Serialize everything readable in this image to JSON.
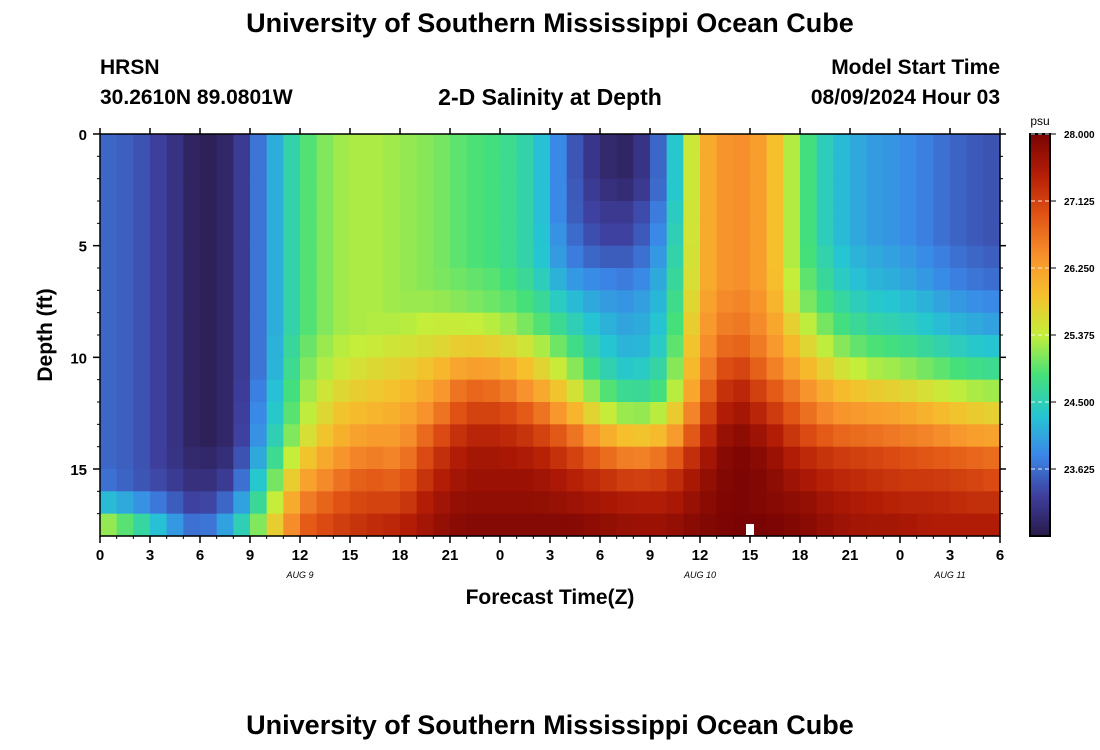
{
  "header": {
    "title": "University of Southern Mississippi Ocean Cube",
    "station": "HRSN",
    "coords": "30.2610N  89.0801W",
    "plot_title": "2-D Salinity at Depth",
    "model_label": "Model Start Time",
    "model_time": "08/09/2024 Hour 03",
    "footer_title": "University of Southern Mississippi Ocean Cube"
  },
  "colors": {
    "palette": [
      "#2a1a4a",
      "#3e3e9c",
      "#3b86e8",
      "#25c6d2",
      "#45e07a",
      "#c4ee3a",
      "#f6c02c",
      "#f7902c",
      "#e05214",
      "#b31d06",
      "#7a0403"
    ]
  },
  "chart_data": {
    "type": "heatmap",
    "title": "2-D Salinity at Depth",
    "xlabel": "Forecast Time(Z)",
    "ylabel": "Depth (ft)",
    "x_tick_labels": [
      "0",
      "3",
      "6",
      "9",
      "12",
      "15",
      "18",
      "21",
      "0",
      "3",
      "6",
      "9",
      "12",
      "15",
      "18",
      "21",
      "0",
      "3",
      "6"
    ],
    "y_ticks": [
      0,
      5,
      10,
      15
    ],
    "y_tick_labels": [
      "0",
      "5",
      "10",
      "15"
    ],
    "ylim": [
      0,
      18
    ],
    "x_hours_range": [
      0,
      54
    ],
    "date_labels": [
      {
        "label": "AUG 9",
        "hour": 12
      },
      {
        "label": "AUG 10",
        "hour": 36
      },
      {
        "label": "AUG 11",
        "hour": 51
      }
    ],
    "colorbar": {
      "unit": "psu",
      "min": 22.75,
      "max": 28.0,
      "tick_values": [
        28.0,
        27.125,
        26.25,
        25.375,
        24.5,
        23.625
      ],
      "tick_labels": [
        "28.000",
        "27.125",
        "26.250",
        "25.375",
        "24.500",
        "23.625"
      ]
    },
    "grid": false,
    "time_step_hours": 1,
    "depth_step_ft": 1,
    "columns": [
      {
        "h": 0,
        "s": [
          23.6,
          23.6,
          23.6,
          23.6,
          23.6,
          23.6,
          23.6,
          23.6,
          23.6,
          23.6,
          23.6,
          23.6,
          23.6,
          23.6,
          23.6,
          23.7,
          24.3,
          25.3,
          26.5
        ]
      },
      {
        "h": 2,
        "s": [
          23.5,
          23.5,
          23.5,
          23.5,
          23.5,
          23.5,
          23.5,
          23.5,
          23.5,
          23.5,
          23.5,
          23.5,
          23.5,
          23.5,
          23.5,
          23.5,
          24.0,
          24.8,
          25.4
        ]
      },
      {
        "h": 4,
        "s": [
          23.2,
          23.2,
          23.2,
          23.2,
          23.2,
          23.2,
          23.2,
          23.2,
          23.2,
          23.2,
          23.2,
          23.2,
          23.2,
          23.2,
          23.2,
          23.3,
          23.6,
          24.1,
          24.4
        ]
      },
      {
        "h": 6,
        "s": [
          22.8,
          22.8,
          22.8,
          22.8,
          22.8,
          22.8,
          22.8,
          22.8,
          22.8,
          22.8,
          22.8,
          22.8,
          22.8,
          22.8,
          22.9,
          23.0,
          23.2,
          23.5,
          23.8
        ]
      },
      {
        "h": 8,
        "s": [
          23.0,
          23.0,
          23.0,
          23.0,
          23.0,
          23.0,
          23.0,
          23.0,
          23.0,
          23.0,
          23.0,
          23.0,
          23.0,
          23.0,
          23.1,
          23.3,
          23.7,
          24.2,
          24.6
        ]
      },
      {
        "h": 10,
        "s": [
          23.9,
          23.9,
          23.9,
          23.9,
          23.9,
          23.9,
          23.9,
          23.9,
          23.9,
          23.9,
          23.9,
          24.0,
          24.1,
          24.2,
          24.4,
          24.7,
          25.0,
          25.4,
          26.0
        ]
      },
      {
        "h": 12,
        "s": [
          24.8,
          24.8,
          24.8,
          24.8,
          24.8,
          24.8,
          24.8,
          24.8,
          24.8,
          24.9,
          25.0,
          25.1,
          25.2,
          25.4,
          25.7,
          26.1,
          26.5,
          26.8,
          27.1
        ]
      },
      {
        "h": 14,
        "s": [
          25.2,
          25.2,
          25.2,
          25.2,
          25.2,
          25.2,
          25.2,
          25.2,
          25.2,
          25.3,
          25.4,
          25.6,
          25.8,
          26.0,
          26.3,
          26.6,
          26.9,
          27.1,
          27.3
        ]
      },
      {
        "h": 16,
        "s": [
          25.3,
          25.3,
          25.3,
          25.3,
          25.3,
          25.3,
          25.3,
          25.3,
          25.3,
          25.4,
          25.6,
          25.8,
          26.0,
          26.3,
          26.6,
          26.9,
          27.1,
          27.3,
          27.5
        ]
      },
      {
        "h": 18,
        "s": [
          25.2,
          25.2,
          25.2,
          25.2,
          25.2,
          25.2,
          25.2,
          25.2,
          25.3,
          25.5,
          25.7,
          25.9,
          26.1,
          26.3,
          26.5,
          26.8,
          27.1,
          27.4,
          27.6
        ]
      },
      {
        "h": 20,
        "s": [
          25.1,
          25.1,
          25.1,
          25.1,
          25.1,
          25.1,
          25.1,
          25.2,
          25.4,
          25.6,
          25.9,
          26.2,
          26.5,
          26.9,
          27.2,
          27.4,
          27.6,
          27.7,
          27.8
        ]
      },
      {
        "h": 22,
        "s": [
          24.9,
          24.9,
          24.9,
          24.9,
          24.9,
          24.9,
          25.0,
          25.1,
          25.4,
          25.8,
          26.3,
          26.8,
          27.1,
          27.4,
          27.6,
          27.7,
          27.8,
          27.9,
          28.0
        ]
      },
      {
        "h": 24,
        "s": [
          24.8,
          24.8,
          24.8,
          24.8,
          24.8,
          24.8,
          24.9,
          25.0,
          25.3,
          25.7,
          26.2,
          26.7,
          27.1,
          27.4,
          27.6,
          27.7,
          27.8,
          27.9,
          28.0
        ]
      },
      {
        "h": 26,
        "s": [
          24.5,
          24.5,
          24.5,
          24.5,
          24.5,
          24.5,
          24.6,
          24.8,
          25.0,
          25.4,
          25.8,
          26.3,
          26.8,
          27.2,
          27.5,
          27.7,
          27.8,
          27.9,
          28.0
        ]
      },
      {
        "h": 28,
        "s": [
          23.6,
          23.6,
          23.6,
          23.6,
          23.7,
          23.8,
          24.0,
          24.3,
          24.6,
          24.9,
          25.3,
          25.7,
          26.2,
          26.8,
          27.2,
          27.5,
          27.7,
          27.9,
          28.0
        ]
      },
      {
        "h": 30,
        "s": [
          23.0,
          23.0,
          23.1,
          23.2,
          23.3,
          23.5,
          23.8,
          24.0,
          24.2,
          24.4,
          24.6,
          25.0,
          25.5,
          26.2,
          26.8,
          27.3,
          27.6,
          27.8,
          27.9
        ]
      },
      {
        "h": 32,
        "s": [
          22.9,
          22.9,
          23.0,
          23.2,
          23.3,
          23.5,
          23.7,
          23.9,
          24.0,
          24.1,
          24.3,
          24.6,
          25.1,
          25.8,
          26.5,
          27.1,
          27.5,
          27.7,
          27.8
        ]
      },
      {
        "h": 34,
        "s": [
          23.8,
          23.8,
          23.8,
          23.9,
          24.0,
          24.1,
          24.2,
          24.3,
          24.4,
          24.5,
          24.7,
          24.9,
          25.4,
          26.0,
          26.7,
          27.2,
          27.5,
          27.7,
          27.8
        ]
      },
      {
        "h": 36,
        "s": [
          26.0,
          26.0,
          26.0,
          26.0,
          26.0,
          26.0,
          26.0,
          26.1,
          26.2,
          26.3,
          26.4,
          26.6,
          26.9,
          27.2,
          27.5,
          27.7,
          27.8,
          27.9,
          27.9
        ]
      },
      {
        "h": 38,
        "s": [
          26.5,
          26.5,
          26.5,
          26.5,
          26.5,
          26.5,
          26.5,
          26.6,
          26.7,
          26.9,
          27.2,
          27.5,
          27.7,
          27.9,
          28.0,
          28.0,
          28.0,
          28.0,
          28.0
        ]
      },
      {
        "h": 40,
        "s": [
          26.2,
          26.2,
          26.2,
          26.2,
          26.2,
          26.2,
          26.2,
          26.3,
          26.4,
          26.5,
          26.7,
          27.0,
          27.3,
          27.6,
          27.8,
          27.9,
          27.9,
          28.0,
          28.0
        ]
      },
      {
        "h": 42,
        "s": [
          25.0,
          25.0,
          25.0,
          25.0,
          25.0,
          25.0,
          25.1,
          25.2,
          25.5,
          25.8,
          26.1,
          26.5,
          26.8,
          27.1,
          27.4,
          27.6,
          27.8,
          27.9,
          27.9
        ]
      },
      {
        "h": 44,
        "s": [
          24.3,
          24.3,
          24.3,
          24.3,
          24.3,
          24.4,
          24.5,
          24.7,
          24.9,
          25.2,
          25.6,
          26.0,
          26.4,
          26.8,
          27.2,
          27.4,
          27.6,
          27.7,
          27.8
        ]
      },
      {
        "h": 46,
        "s": [
          24.0,
          24.0,
          24.0,
          24.0,
          24.0,
          24.1,
          24.2,
          24.4,
          24.6,
          24.9,
          25.3,
          25.8,
          26.3,
          26.7,
          27.1,
          27.3,
          27.5,
          27.6,
          27.7
        ]
      },
      {
        "h": 48,
        "s": [
          23.9,
          23.9,
          23.9,
          23.9,
          23.9,
          24.0,
          24.1,
          24.3,
          24.5,
          24.8,
          25.2,
          25.7,
          26.2,
          26.6,
          27.0,
          27.2,
          27.4,
          27.6,
          27.7
        ]
      },
      {
        "h": 50,
        "s": [
          23.7,
          23.7,
          23.7,
          23.7,
          23.7,
          23.8,
          23.9,
          24.1,
          24.3,
          24.6,
          25.0,
          25.5,
          26.0,
          26.5,
          26.9,
          27.2,
          27.4,
          27.5,
          27.6
        ]
      },
      {
        "h": 52,
        "s": [
          23.5,
          23.5,
          23.5,
          23.5,
          23.5,
          23.6,
          23.7,
          23.9,
          24.1,
          24.4,
          24.8,
          25.3,
          25.8,
          26.3,
          26.8,
          27.1,
          27.3,
          27.5,
          27.6
        ]
      },
      {
        "h": 54,
        "s": [
          23.4,
          23.4,
          23.4,
          23.4,
          23.4,
          23.5,
          23.6,
          23.8,
          24.0,
          24.3,
          24.7,
          25.2,
          25.7,
          26.2,
          26.7,
          27.0,
          27.3,
          27.5,
          27.6
        ]
      }
    ]
  }
}
